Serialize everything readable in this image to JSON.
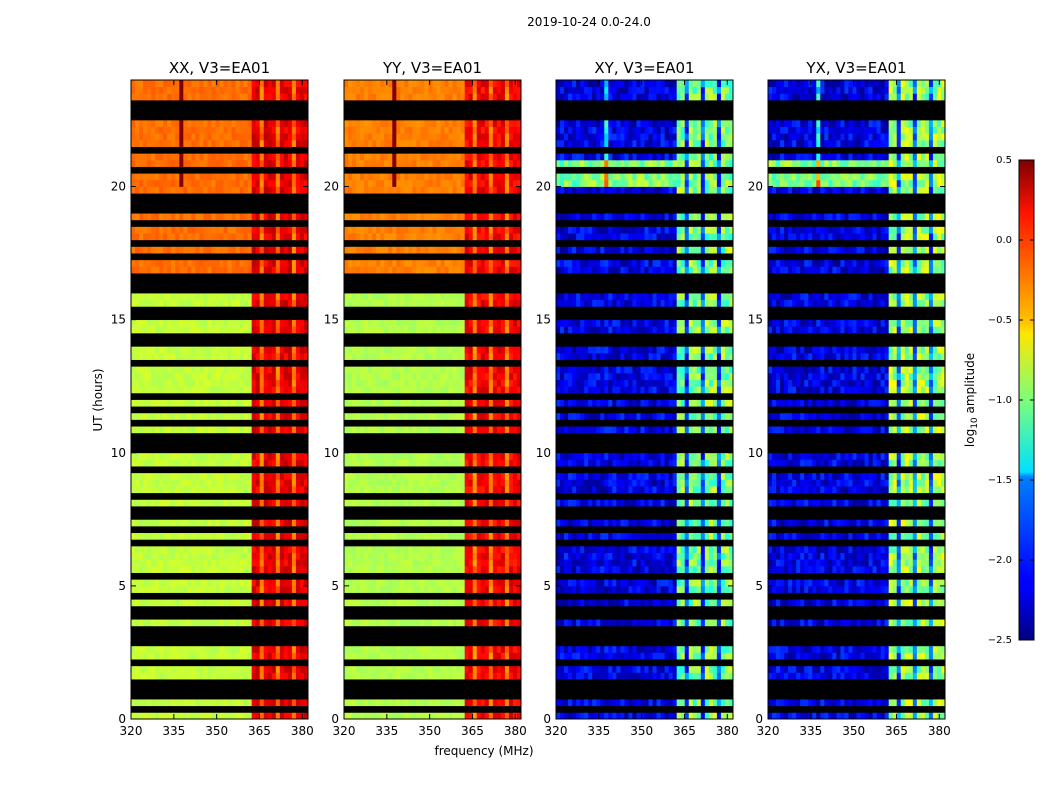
{
  "chart_data": {
    "type": "heatmap",
    "suptitle": "2019-10-24 0.0-24.0",
    "xlabel": "frequency (MHz)",
    "ylabel": "UT (hours)",
    "xlim": [
      320,
      382
    ],
    "ylim": [
      0,
      24
    ],
    "xticks": [
      320,
      335,
      350,
      365,
      380
    ],
    "yticks": [
      0,
      5,
      10,
      15,
      20
    ],
    "colorbar": {
      "label": "log10 amplitude",
      "range": [
        -2.5,
        0.5
      ],
      "ticks": [
        "0.5",
        "0.0",
        "−0.5",
        "−1.0",
        "−1.5",
        "−2.0",
        "−2.5"
      ],
      "colormap": "jet"
    },
    "flagged_hours": [
      0.3,
      0.7,
      1.1,
      1.35,
      2.1,
      2.8,
      2.9,
      3.3,
      3.8,
      3.95,
      4.6,
      5.3,
      6.5,
      6.55,
      7.05,
      7.5,
      7.6,
      7.7,
      8.3,
      9.3,
      9.9,
      10.3,
      10.35,
      10.6,
      11.1,
      11.4,
      11.45,
      12.0,
      13.2,
      14.0,
      14.3,
      14.35,
      14.9,
      15.2,
      15.25,
      16.1,
      16.3,
      16.6,
      17.3,
      17.8,
      18.4,
      18.45,
      18.9,
      19.2,
      19.5,
      19.55,
      20.6,
      21.3,
      21.35,
      22.4,
      22.7,
      23.0,
      23.05
    ],
    "panels": [
      {
        "title": "XX, V3=EA01",
        "product": "autocorrelation",
        "base_log_amp_before_16h": -0.8,
        "base_log_amp_after_16h": -0.2,
        "band_log_amp": 0.2
      },
      {
        "title": "YY, V3=EA01",
        "product": "autocorrelation",
        "base_log_amp_before_16h": -0.85,
        "base_log_amp_after_16h": -0.25,
        "band_log_amp": 0.15
      },
      {
        "title": "XY, V3=EA01",
        "product": "cross-correlation",
        "base_log_amp": -2.2,
        "band_log_amp": -1.0
      },
      {
        "title": "YX, V3=EA01",
        "product": "cross-correlation",
        "base_log_amp": -2.2,
        "band_log_amp": -0.9
      }
    ],
    "band_channels_mhz": [
      362,
      382
    ]
  }
}
